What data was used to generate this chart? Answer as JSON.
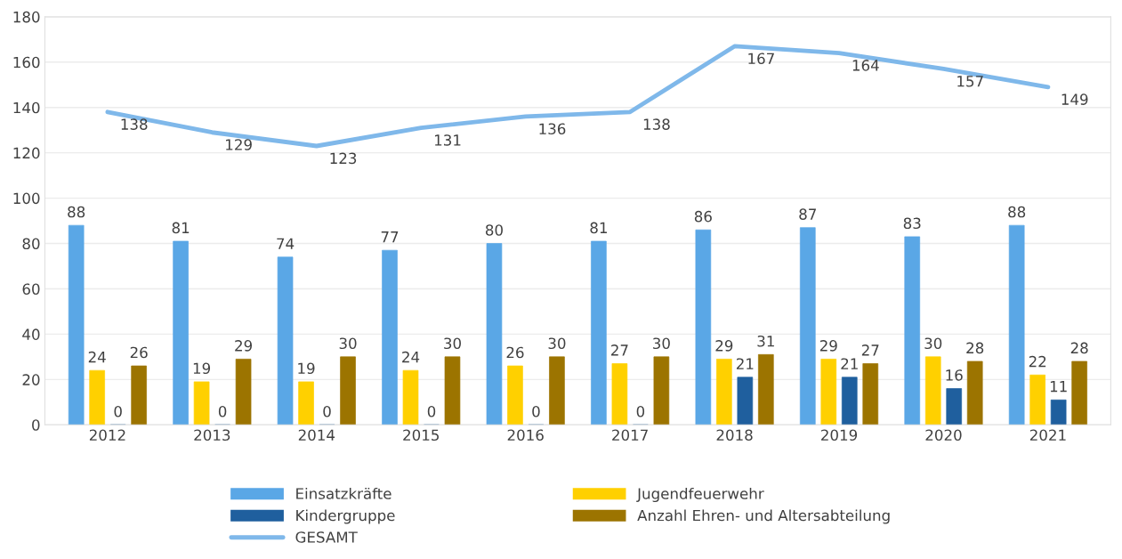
{
  "chart_data": {
    "type": "bar",
    "categories": [
      "2012",
      "2013",
      "2014",
      "2015",
      "2016",
      "2017",
      "2018",
      "2019",
      "2020",
      "2021"
    ],
    "series": [
      {
        "name": "Einsatzkräfte",
        "color": "#5aa7e6",
        "values": [
          88,
          81,
          74,
          77,
          80,
          81,
          86,
          87,
          83,
          88
        ]
      },
      {
        "name": "Jugendfeuerwehr",
        "color": "#ffd000",
        "values": [
          24,
          19,
          19,
          24,
          26,
          27,
          29,
          29,
          30,
          22
        ]
      },
      {
        "name": "Kindergruppe",
        "color": "#1f5f9e",
        "values": [
          0,
          0,
          0,
          0,
          0,
          0,
          21,
          21,
          16,
          11
        ]
      },
      {
        "name": "Anzahl Ehren- und Altersabteilung",
        "color": "#9c7400",
        "values": [
          26,
          29,
          30,
          30,
          30,
          30,
          31,
          27,
          28,
          28
        ]
      },
      {
        "name": "GESAMT",
        "type": "line",
        "color": "#7fb8ea",
        "values": [
          138,
          129,
          123,
          131,
          136,
          138,
          167,
          164,
          157,
          149
        ]
      }
    ],
    "ylim": [
      0,
      180
    ],
    "yticks": [
      0,
      20,
      40,
      60,
      80,
      100,
      120,
      140,
      160,
      180
    ],
    "grid": "y",
    "legend": "bottom",
    "data_labels": true
  }
}
